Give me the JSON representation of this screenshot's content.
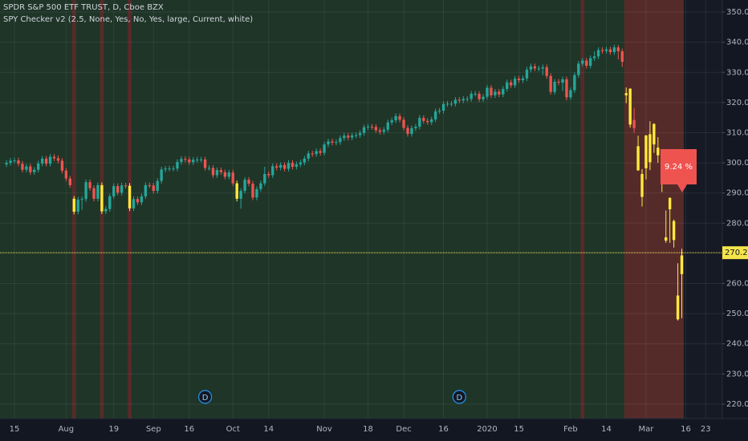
{
  "chart_data": {
    "type": "candlestick",
    "title": "SPDR S&P 500 ETF TRUST, D, Cboe BZX",
    "subtitle": "SPY Checker v2 (2.5, None, Yes, No, Yes, large, Current, white)",
    "open": [
      299.5,
      300.0,
      300.7,
      300.8,
      299.7,
      297.7,
      298.8,
      296.9,
      297.7,
      299.8,
      301.4,
      299.7,
      302.0,
      301.5,
      300.7,
      297.4,
      294.8,
      288.1,
      283.8,
      287.8,
      288.0,
      293.6,
      291.6,
      288.1,
      292.6,
      283.9,
      284.7,
      288.9,
      292.3,
      290.1,
      292.5,
      292.4,
      284.9,
      288.0,
      286.9,
      288.9,
      292.6,
      292.5,
      290.7,
      294.0,
      297.8,
      298.1,
      298.1,
      298.1,
      300.3,
      301.3,
      301.1,
      300.2,
      301.0,
      301.1,
      301.1,
      298.3,
      298.3,
      295.9,
      297.6,
      296.9,
      295.4,
      296.8,
      293.2,
      288.1,
      290.7,
      294.4,
      293.1,
      288.5,
      291.3,
      293.2,
      296.3,
      295.9,
      298.9,
      298.4,
      299.3,
      298.0,
      300.0,
      298.7,
      299.5,
      300.1,
      301.4,
      303.1,
      302.9,
      303.9,
      303.3,
      306.1,
      307.1,
      306.7,
      306.9,
      308.2,
      309.0,
      308.4,
      309.1,
      309.2,
      309.9,
      311.8,
      312.0,
      311.9,
      310.8,
      310.3,
      311.0,
      313.4,
      314.1,
      315.5,
      314.3,
      311.6,
      309.6,
      311.5,
      312.0,
      314.9,
      313.9,
      313.5,
      314.4,
      317.1,
      317.3,
      319.5,
      319.6,
      319.6,
      320.9,
      320.7,
      321.2,
      321.2,
      322.9,
      322.9,
      321.1,
      321.9,
      324.9,
      322.4,
      323.6,
      322.7,
      324.5,
      326.7,
      325.7,
      327.9,
      327.4,
      328.0,
      330.9,
      332.0,
      331.3,
      331.3,
      331.7,
      328.8,
      323.5,
      326.9,
      326.6,
      327.7,
      321.7,
      324.1,
      329.1,
      332.9,
      333.9,
      332.2,
      334.7,
      335.3,
      337.4,
      337.1,
      337.6,
      336.7,
      338.3,
      337.0,
      323.1,
      324.6,
      314.2,
      305.5,
      288.7,
      298.2,
      309.5,
      306.1,
      305.0,
      293.1,
      275.3,
      284.6,
      280.7,
      256.0,
      263.1
    ],
    "high": [
      300.9,
      301.6,
      301.7,
      301.7,
      300.6,
      299.7,
      299.7,
      298.6,
      300.7,
      302.3,
      302.3,
      302.9,
      302.9,
      302.4,
      301.6,
      298.3,
      295.7,
      289.0,
      288.7,
      288.9,
      294.5,
      294.5,
      292.5,
      293.5,
      293.5,
      285.6,
      289.8,
      293.2,
      293.2,
      293.4,
      293.4,
      293.3,
      288.9,
      288.9,
      289.8,
      293.5,
      293.5,
      293.4,
      294.9,
      298.7,
      299.0,
      299.0,
      299.0,
      301.2,
      302.2,
      302.2,
      302.0,
      301.9,
      302.0,
      302.0,
      302.0,
      299.2,
      299.2,
      298.5,
      298.5,
      297.8,
      297.7,
      297.7,
      294.1,
      291.6,
      295.3,
      295.3,
      294.0,
      292.2,
      294.1,
      298.7,
      297.2,
      299.8,
      299.8,
      300.2,
      300.2,
      300.9,
      300.9,
      300.4,
      301.0,
      302.3,
      304.0,
      304.0,
      304.8,
      304.8,
      307.0,
      308.0,
      308.0,
      307.8,
      309.1,
      309.9,
      309.9,
      310.0,
      310.1,
      310.8,
      312.7,
      312.9,
      312.9,
      312.8,
      311.7,
      311.9,
      314.3,
      315.0,
      316.4,
      316.4,
      315.2,
      312.5,
      312.4,
      312.9,
      315.8,
      315.8,
      314.8,
      315.3,
      318.0,
      318.2,
      320.4,
      320.5,
      320.5,
      321.8,
      321.8,
      322.1,
      322.1,
      323.8,
      323.8,
      323.8,
      322.8,
      325.8,
      325.8,
      324.5,
      324.5,
      325.4,
      327.6,
      327.6,
      328.8,
      328.8,
      328.9,
      331.8,
      332.9,
      332.9,
      332.2,
      332.6,
      332.6,
      329.7,
      327.8,
      327.8,
      328.6,
      328.6,
      325.0,
      330.0,
      333.8,
      334.8,
      334.8,
      335.6,
      337.0,
      338.3,
      338.3,
      338.5,
      338.5,
      339.1,
      339.1,
      337.9,
      325.0,
      324.7,
      318.2,
      309.0,
      297.9,
      309.2,
      313.8,
      313.1,
      308.5,
      298.0,
      284.2,
      288.5,
      281.2,
      266.7,
      271.5
    ],
    "low": [
      298.6,
      299.1,
      299.8,
      298.8,
      296.8,
      296.8,
      296.0,
      296.0,
      296.8,
      298.9,
      298.8,
      298.8,
      300.6,
      299.8,
      296.5,
      293.9,
      291.7,
      282.9,
      282.9,
      284.4,
      287.1,
      290.7,
      287.2,
      287.2,
      283.0,
      283.0,
      283.8,
      288.0,
      289.2,
      289.2,
      291.5,
      284.0,
      284.0,
      286.0,
      286.0,
      288.0,
      291.6,
      289.8,
      289.8,
      293.1,
      296.9,
      297.2,
      297.2,
      297.2,
      299.4,
      300.2,
      299.3,
      299.3,
      300.1,
      300.2,
      297.4,
      297.4,
      295.0,
      295.0,
      296.0,
      294.5,
      294.5,
      292.3,
      287.2,
      284.8,
      289.8,
      292.2,
      287.6,
      287.6,
      290.4,
      292.3,
      295.0,
      295.0,
      297.5,
      297.5,
      297.1,
      297.1,
      297.8,
      297.8,
      298.6,
      299.2,
      300.5,
      302.0,
      302.0,
      302.4,
      302.4,
      305.2,
      305.8,
      305.8,
      306.0,
      307.3,
      307.5,
      307.5,
      308.2,
      308.3,
      309.0,
      310.9,
      311.0,
      309.9,
      309.4,
      309.4,
      310.1,
      312.5,
      313.2,
      313.4,
      310.7,
      308.7,
      308.7,
      310.6,
      311.1,
      313.0,
      312.6,
      312.6,
      313.5,
      316.2,
      316.4,
      318.6,
      318.7,
      318.7,
      319.8,
      319.8,
      320.3,
      320.3,
      322.0,
      320.2,
      320.2,
      321.0,
      321.5,
      321.5,
      321.8,
      321.8,
      323.6,
      324.8,
      324.8,
      326.5,
      326.5,
      327.1,
      330.0,
      330.4,
      330.4,
      329.1,
      327.9,
      322.6,
      322.6,
      325.7,
      323.8,
      320.7,
      320.8,
      323.2,
      328.2,
      332.0,
      331.3,
      331.3,
      333.8,
      334.4,
      336.2,
      336.2,
      335.8,
      335.8,
      334.3,
      331.8,
      319.8,
      311.7,
      309.9,
      297.4,
      285.5,
      294.5,
      297.6,
      303.3,
      300.0,
      290.3,
      273.5,
      273.5,
      271.9,
      247.7,
      248.5
    ],
    "close": [
      300.0,
      300.7,
      300.8,
      299.7,
      297.7,
      298.8,
      296.9,
      297.7,
      299.8,
      301.4,
      299.7,
      302.0,
      301.5,
      300.7,
      297.4,
      294.8,
      292.6,
      283.8,
      287.8,
      288.0,
      293.6,
      291.6,
      288.1,
      292.6,
      283.9,
      284.7,
      288.9,
      292.3,
      290.1,
      292.5,
      292.4,
      284.9,
      288.0,
      286.9,
      288.9,
      292.6,
      292.5,
      290.7,
      294.0,
      297.8,
      298.1,
      298.1,
      298.1,
      300.3,
      301.3,
      301.1,
      300.2,
      301.0,
      301.1,
      301.1,
      298.3,
      298.3,
      295.9,
      297.6,
      296.9,
      295.4,
      296.8,
      293.2,
      288.1,
      290.7,
      294.4,
      293.1,
      288.5,
      291.3,
      293.2,
      296.3,
      295.9,
      298.9,
      298.4,
      299.3,
      298.0,
      300.0,
      298.7,
      299.5,
      300.1,
      301.4,
      303.1,
      302.9,
      303.9,
      303.3,
      306.1,
      307.1,
      306.7,
      306.9,
      308.2,
      309.0,
      308.4,
      309.1,
      309.2,
      309.9,
      311.8,
      312.0,
      311.9,
      310.8,
      310.3,
      311.0,
      313.4,
      314.1,
      315.5,
      314.3,
      311.6,
      309.6,
      311.5,
      312.0,
      314.9,
      313.9,
      313.5,
      314.4,
      317.1,
      317.3,
      319.5,
      319.6,
      319.6,
      320.9,
      320.7,
      321.2,
      321.2,
      322.9,
      322.9,
      321.1,
      321.9,
      324.9,
      322.4,
      323.6,
      322.7,
      324.5,
      326.7,
      325.7,
      327.9,
      327.4,
      328.0,
      330.9,
      332.0,
      331.3,
      331.3,
      331.7,
      328.8,
      323.5,
      326.9,
      326.6,
      327.7,
      321.7,
      324.1,
      329.1,
      332.9,
      333.9,
      332.2,
      334.7,
      335.3,
      337.4,
      337.1,
      337.6,
      336.7,
      338.3,
      337.0,
      333.5,
      322.4,
      312.7,
      311.5,
      297.5,
      296.3,
      309.1,
      300.2,
      312.9,
      302.5,
      297.5,
      274.2,
      288.4,
      274.4,
      248.1,
      269.3
    ],
    "up_color": "#26a69a",
    "down_color": "#ef5350",
    "highlight_color": "#ffeb3b",
    "highlighted": [
      17,
      24,
      31,
      58,
      156,
      157,
      159,
      160,
      161,
      162,
      163,
      164,
      165,
      166,
      167,
      168,
      169,
      170
    ],
    "shade_color": "rgba(150,30,45,0.45)",
    "shaded_ranges": [
      [
        16.5,
        17.5
      ],
      [
        23.5,
        24.5
      ],
      [
        30.5,
        31.5
      ],
      [
        144.5,
        145.5
      ],
      [
        155.5,
        170.5
      ]
    ],
    "xlim": [
      -1.64,
      180.2
    ],
    "xticks": [
      {
        "value": 2,
        "label": "15"
      },
      {
        "value": 15,
        "label": "Aug"
      },
      {
        "value": 27,
        "label": "19"
      },
      {
        "value": 37,
        "label": "Sep"
      },
      {
        "value": 46,
        "label": "16"
      },
      {
        "value": 57,
        "label": "Oct"
      },
      {
        "value": 66,
        "label": "14"
      },
      {
        "value": 80,
        "label": "Nov"
      },
      {
        "value": 91,
        "label": "18"
      },
      {
        "value": 100,
        "label": "Dec"
      },
      {
        "value": 110,
        "label": "16"
      },
      {
        "value": 121,
        "label": "2020"
      },
      {
        "value": 129,
        "label": "15"
      },
      {
        "value": 142,
        "label": "Feb"
      },
      {
        "value": 151,
        "label": "14"
      },
      {
        "value": 161,
        "label": "Mar"
      },
      {
        "value": 171,
        "label": "16"
      },
      {
        "value": 176,
        "label": "23"
      }
    ],
    "ylim": [
      215.2,
      354
    ],
    "yticks": [
      {
        "value": 220,
        "label": "220.00"
      },
      {
        "value": 230,
        "label": "230.00"
      },
      {
        "value": 240,
        "label": "240.00"
      },
      {
        "value": 250,
        "label": "250.00"
      },
      {
        "value": 260,
        "label": "260.00"
      },
      {
        "value": 270,
        "label": "270.00"
      },
      {
        "value": 280,
        "label": "280.00"
      },
      {
        "value": 290,
        "label": "290.00"
      },
      {
        "value": 300,
        "label": "300.00"
      },
      {
        "value": 310,
        "label": "310.00"
      },
      {
        "value": 320,
        "label": "320.00"
      },
      {
        "value": 330,
        "label": "330.00"
      },
      {
        "value": 340,
        "label": "340.00"
      },
      {
        "value": 350,
        "label": "350.00"
      }
    ],
    "grid": true,
    "price_line": {
      "value": 270.2,
      "label": "270.20",
      "color": "#f5e54a"
    },
    "events": [
      {
        "x": 50,
        "label": "D"
      },
      {
        "x": 114,
        "label": "D"
      }
    ],
    "annotations": [
      {
        "text": "9.24 %",
        "color": "#ef5350"
      }
    ]
  }
}
